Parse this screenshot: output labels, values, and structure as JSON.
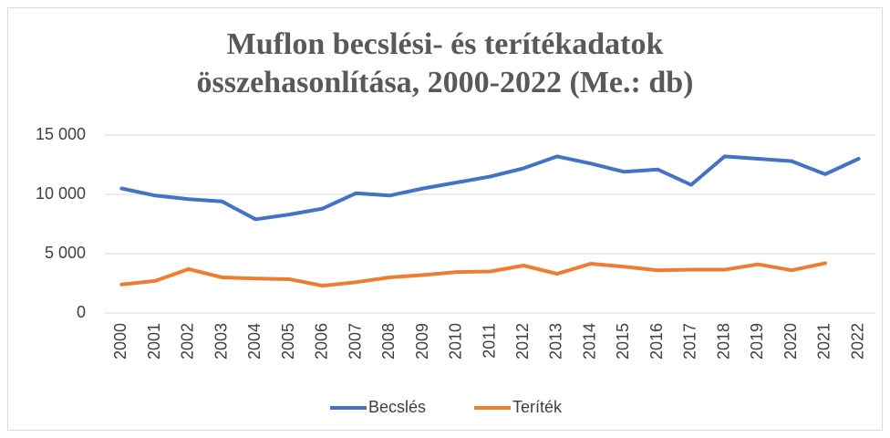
{
  "chart_data": {
    "type": "line",
    "title": "Muflon becslési- és terítékadatok összehasonlítása, 2000-2022 (Me.: db)",
    "categories": [
      "2000",
      "2001",
      "2002",
      "2003",
      "2004",
      "2005",
      "2006",
      "2007",
      "2008",
      "2009",
      "2010",
      "2011",
      "2012",
      "2013",
      "2014",
      "2015",
      "2016",
      "2017",
      "2018",
      "2019",
      "2020",
      "2021",
      "2022"
    ],
    "series": [
      {
        "name": "Becslés",
        "color": "#4472c4",
        "values": [
          10500,
          9900,
          9600,
          9400,
          7900,
          8300,
          8800,
          10100,
          9900,
          10500,
          11000,
          11500,
          12200,
          13200,
          12600,
          11900,
          12100,
          10800,
          13200,
          13000,
          12800,
          11700,
          13000
        ]
      },
      {
        "name": "Teríték",
        "color": "#ed7d31",
        "values": [
          2400,
          2700,
          3700,
          3000,
          2900,
          2850,
          2300,
          2600,
          3000,
          3200,
          3450,
          3500,
          4000,
          3300,
          4150,
          3900,
          3600,
          3650,
          3650,
          4100,
          3600,
          4200,
          null
        ]
      }
    ],
    "ylim": [
      0,
      15000
    ],
    "yticks": [
      0,
      {
        "value": 5000,
        "label": "5 000"
      },
      {
        "value": 10000,
        "label": "10 000"
      },
      {
        "value": 15000,
        "label": "15 000"
      }
    ],
    "grid": true,
    "legend": "bottom"
  }
}
